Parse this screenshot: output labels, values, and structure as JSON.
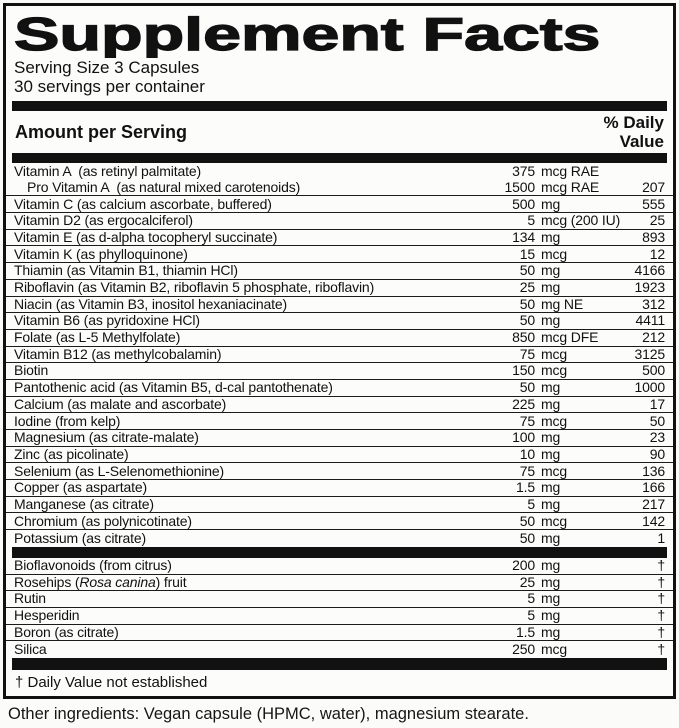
{
  "panel": {
    "title": "Supplement Facts",
    "serving_size": "Serving Size 3 Capsules",
    "servings_per_container": "30 servings per container",
    "amount_header": "Amount per Serving",
    "dv_header_line1": "% Daily",
    "dv_header_line2": "Value",
    "footnote": "† Daily Value not established",
    "other_ingredients": "Other ingredients: Vegan capsule (HPMC, water), magnesium stearate."
  },
  "colors": {
    "text": "#111111",
    "border": "#111111",
    "background": "#fcfcfb"
  },
  "nutrients": [
    {
      "name": "Vitamin A  (as retinyl palmitate)",
      "amount": "375",
      "unit": "mcg RAE",
      "dv": "",
      "no_divider": true
    },
    {
      "name": "Pro Vitamin A  (as natural mixed carotenoids)",
      "amount": "1500",
      "unit": "mcg RAE",
      "dv": "207",
      "indent": true
    },
    {
      "name": "Vitamin C (as calcium ascorbate, buffered)",
      "amount": "500",
      "unit": "mg",
      "dv": "555"
    },
    {
      "name": "Vitamin D2 (as ergocalciferol)",
      "amount": "5",
      "unit": "mcg (200 IU)",
      "dv": "25"
    },
    {
      "name": "Vitamin E (as d-alpha tocopheryl succinate)",
      "amount": "134",
      "unit": "mg",
      "dv": "893"
    },
    {
      "name": "Vitamin K (as phylloquinone)",
      "amount": "15",
      "unit": "mcg",
      "dv": "12"
    },
    {
      "name": "Thiamin (as Vitamin B1, thiamin HCl)",
      "amount": "50",
      "unit": "mg",
      "dv": "4166"
    },
    {
      "name": "Riboflavin (as Vitamin B2, riboflavin 5 phosphate, riboflavin)",
      "amount": "25",
      "unit": "mg",
      "dv": "1923"
    },
    {
      "name": "Niacin (as Vitamin B3, inositol hexaniacinate)",
      "amount": "50",
      "unit": "mg NE",
      "dv": "312"
    },
    {
      "name": "Vitamin B6 (as pyridoxine HCl)",
      "amount": "50",
      "unit": "mg",
      "dv": "4411"
    },
    {
      "name": "Folate (as L-5 Methylfolate)",
      "amount": "850",
      "unit": "mcg DFE",
      "dv": "212"
    },
    {
      "name": "Vitamin B12 (as methylcobalamin)",
      "amount": "75",
      "unit": "mcg",
      "dv": "3125"
    },
    {
      "name": "Biotin",
      "amount": "150",
      "unit": "mcg",
      "dv": "500"
    },
    {
      "name": "Pantothenic acid (as Vitamin B5, d-cal pantothenate)",
      "amount": "50",
      "unit": "mg",
      "dv": "1000"
    },
    {
      "name": "Calcium (as malate and ascorbate)",
      "amount": "225",
      "unit": "mg",
      "dv": "17"
    },
    {
      "name": "Iodine (from kelp)",
      "amount": "75",
      "unit": "mcg",
      "dv": "50"
    },
    {
      "name": "Magnesium (as citrate-malate)",
      "amount": "100",
      "unit": "mg",
      "dv": "23"
    },
    {
      "name": "Zinc (as picolinate)",
      "amount": "10",
      "unit": "mg",
      "dv": "90"
    },
    {
      "name": "Selenium (as L-Selenomethionine)",
      "amount": "75",
      "unit": "mcg",
      "dv": "136"
    },
    {
      "name": "Copper (as aspartate)",
      "amount": "1.5",
      "unit": "mg",
      "dv": "166"
    },
    {
      "name": "Manganese (as citrate)",
      "amount": "5",
      "unit": "mg",
      "dv": "217"
    },
    {
      "name": "Chromium (as polynicotinate)",
      "amount": "50",
      "unit": "mcg",
      "dv": "142"
    },
    {
      "name": "Potassium (as citrate)",
      "amount": "50",
      "unit": "mg",
      "dv": "1",
      "last": true
    }
  ],
  "botanicals": [
    {
      "name": "Bioflavonoids (from citrus)",
      "amount": "200",
      "unit": "mg",
      "dv": "†"
    },
    {
      "name": "Rosehips (Rosa canina) fruit",
      "italic_segment": "Rosa canina",
      "amount": "25",
      "unit": "mg",
      "dv": "†"
    },
    {
      "name": "Rutin",
      "amount": "5",
      "unit": "mg",
      "dv": "†"
    },
    {
      "name": "Hesperidin",
      "amount": "5",
      "unit": "mg",
      "dv": "†"
    },
    {
      "name": "Boron (as citrate)",
      "amount": "1.5",
      "unit": "mg",
      "dv": "†"
    },
    {
      "name": "Silica",
      "amount": "250",
      "unit": "mcg",
      "dv": "†",
      "last": true
    }
  ]
}
